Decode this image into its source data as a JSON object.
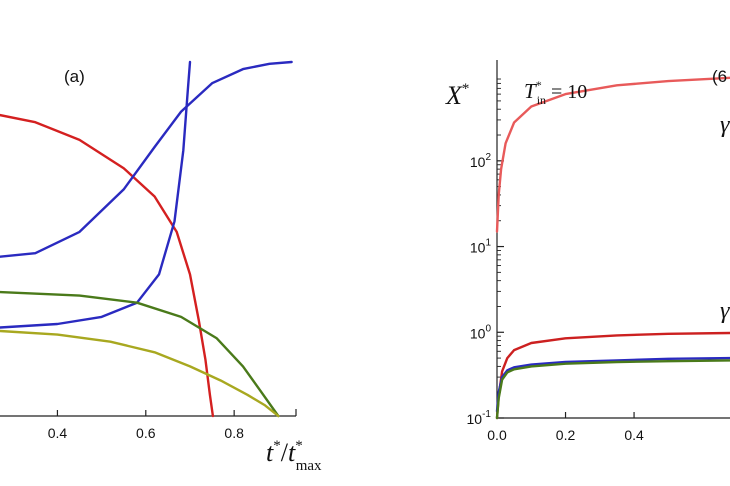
{
  "chart_data": [
    {
      "panel": "(a)",
      "type": "line",
      "xlabel": {
        "main": "t",
        "sup": "*",
        "slash": "/",
        "main2": "t",
        "sup2": "*",
        "sub2": "max"
      },
      "xlim": [
        0.27,
        0.94
      ],
      "ylim": [
        0,
        1
      ],
      "xticks": [
        0.4,
        0.6,
        0.8
      ],
      "xtick_labels": [
        "0.4",
        "0.6",
        "0.8"
      ],
      "series": [
        {
          "color": "#d42020",
          "x": [
            0.27,
            0.35,
            0.45,
            0.55,
            0.62,
            0.67,
            0.7,
            0.72,
            0.735,
            0.745,
            0.752
          ],
          "y": [
            0.85,
            0.83,
            0.78,
            0.7,
            0.62,
            0.52,
            0.4,
            0.27,
            0.16,
            0.06,
            0.0
          ]
        },
        {
          "color": "#2a2ac0",
          "x": [
            0.27,
            0.35,
            0.45,
            0.55,
            0.62,
            0.68,
            0.75,
            0.82,
            0.88,
            0.93
          ],
          "y": [
            0.45,
            0.46,
            0.52,
            0.64,
            0.76,
            0.86,
            0.94,
            0.98,
            0.995,
            1.0
          ]
        },
        {
          "color": "#2a2ac0",
          "x": [
            0.27,
            0.4,
            0.5,
            0.58,
            0.63,
            0.665,
            0.685,
            0.695,
            0.7
          ],
          "y": [
            0.25,
            0.26,
            0.28,
            0.32,
            0.4,
            0.55,
            0.75,
            0.92,
            1.0
          ]
        },
        {
          "color": "#4a7a1a",
          "x": [
            0.27,
            0.45,
            0.58,
            0.68,
            0.76,
            0.82,
            0.86,
            0.9
          ],
          "y": [
            0.35,
            0.34,
            0.32,
            0.28,
            0.22,
            0.14,
            0.07,
            0.0
          ]
        },
        {
          "color": "#a8a820",
          "x": [
            0.27,
            0.4,
            0.52,
            0.62,
            0.7,
            0.77,
            0.83,
            0.87,
            0.9
          ],
          "y": [
            0.24,
            0.23,
            0.21,
            0.18,
            0.14,
            0.1,
            0.06,
            0.03,
            0.0
          ]
        }
      ]
    },
    {
      "panel": "(6",
      "type": "line",
      "yscale": "log",
      "ylabel": {
        "main": "X",
        "sup": "*"
      },
      "annotation": {
        "main": "T",
        "sub": "in",
        "sup": "*",
        "rest": " = 10"
      },
      "right_edge_glyph": "γ",
      "xlim": [
        0.0,
        0.68
      ],
      "ylim": [
        0.1,
        1500
      ],
      "xticks": [
        0.0,
        0.2,
        0.4
      ],
      "xtick_labels": [
        "0.0",
        "0.2",
        "0.4"
      ],
      "yticks": [
        0.1,
        1,
        10,
        100
      ],
      "ytick_labels": [
        [
          "10",
          "-1"
        ],
        [
          "10",
          "0"
        ],
        [
          "10",
          "1"
        ],
        [
          "10",
          "2"
        ]
      ],
      "series": [
        {
          "color": "#e85a5a",
          "x": [
            0.0,
            0.005,
            0.012,
            0.025,
            0.05,
            0.1,
            0.2,
            0.35,
            0.5,
            0.68
          ],
          "y": [
            15,
            40,
            80,
            160,
            280,
            430,
            600,
            760,
            850,
            930
          ]
        },
        {
          "color": "#cc2020",
          "x": [
            0.0,
            0.005,
            0.015,
            0.03,
            0.05,
            0.1,
            0.2,
            0.35,
            0.5,
            0.68
          ],
          "y": [
            0.1,
            0.18,
            0.35,
            0.5,
            0.62,
            0.75,
            0.85,
            0.92,
            0.96,
            0.98
          ]
        },
        {
          "color": "#2a2ac0",
          "x": [
            0.0,
            0.005,
            0.015,
            0.03,
            0.05,
            0.1,
            0.2,
            0.35,
            0.5,
            0.68
          ],
          "y": [
            0.12,
            0.2,
            0.3,
            0.36,
            0.39,
            0.42,
            0.45,
            0.47,
            0.49,
            0.5
          ]
        },
        {
          "color": "#4a7a1a",
          "x": [
            0.0,
            0.005,
            0.015,
            0.03,
            0.05,
            0.1,
            0.2,
            0.35,
            0.5,
            0.68
          ],
          "y": [
            0.1,
            0.17,
            0.28,
            0.34,
            0.37,
            0.4,
            0.43,
            0.45,
            0.46,
            0.47
          ]
        }
      ]
    }
  ]
}
